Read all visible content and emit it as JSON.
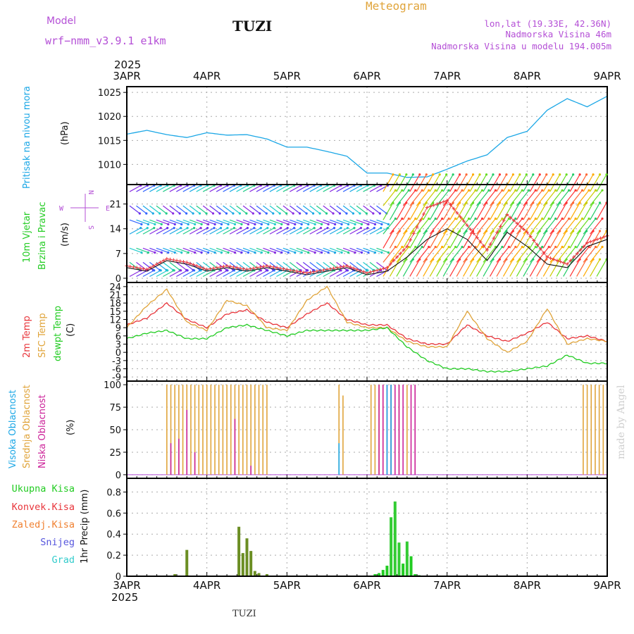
{
  "header": {
    "model_label": "Model",
    "model_name": "wrf−nmm_v3.9.1  e1km",
    "station": "TUZI",
    "title": "Meteogram",
    "coords": "lon,lat (19.33E, 42.36N)",
    "elevation": "Nadmorska Visina 46m",
    "model_elevation": "Nadmorska Visina u modelu 194.005m"
  },
  "footer": {
    "station": "TUZI",
    "watermark": "made by Angel"
  },
  "colors": {
    "pressure": "#1ba7e6",
    "t2m": "#e8353b",
    "sfc": "#e0a43a",
    "dew": "#22cc22",
    "cloud_high": "#1ba7e6",
    "cloud_mid": "#e0a43a",
    "cloud_low": "#cc2299",
    "rain_total": "#22cc22",
    "rain_conv": "#e8353b",
    "rain_frozen": "#f08030",
    "snow": "#5555dd",
    "graupel": "#33cccc",
    "purple_text": "#b44fd6"
  },
  "chart_data": [
    {
      "id": "pressure",
      "type": "line",
      "ylabel": [
        "Pritisak na nivou mora",
        "(hPa)"
      ],
      "yticks": [
        1010,
        1015,
        1020,
        1025
      ],
      "ylim": [
        1005.8,
        1026.2
      ],
      "series": [
        {
          "x_days": [
            0.0,
            0.25,
            0.5,
            0.75,
            1.0,
            1.25,
            1.5,
            1.75,
            2.0,
            2.25,
            2.5,
            2.75,
            3.0,
            3.25,
            3.5,
            3.75,
            4.0,
            4.25,
            4.5,
            4.75,
            5.0,
            5.25,
            5.5,
            5.75,
            6.0
          ],
          "values": [
            1016.3,
            1017.1,
            1016.2,
            1015.6,
            1016.6,
            1016.1,
            1016.2,
            1015.3,
            1013.6,
            1013.6,
            1012.7,
            1011.7,
            1008.2,
            1008.2,
            1007.3,
            1007.4,
            1009.0,
            1010.7,
            1012.0,
            1015.6,
            1016.9,
            1021.3,
            1023.7,
            1022.0,
            1024.2
          ]
        }
      ]
    },
    {
      "id": "wind",
      "type": "line",
      "ylabel": [
        "10m Vjetar",
        "Brzina i Pravac",
        "(m/s)"
      ],
      "compass": {
        "n": "N",
        "s": "S",
        "e": "E",
        "w": "W"
      },
      "yticks": [
        0,
        7,
        14,
        21
      ],
      "ylim": [
        -1.2,
        26.5
      ],
      "series": [
        {
          "name": "speed",
          "x_days": [
            0.0,
            0.25,
            0.5,
            0.75,
            1.0,
            1.25,
            1.5,
            1.75,
            2.0,
            2.25,
            2.5,
            2.75,
            3.0,
            3.25,
            3.5,
            3.75,
            4.0,
            4.25,
            4.5,
            4.75,
            5.0,
            5.25,
            5.5,
            5.75,
            6.0
          ],
          "values": [
            3,
            2,
            5,
            4,
            2,
            3,
            2,
            3,
            2,
            1,
            2,
            3,
            1,
            2,
            6,
            11,
            14,
            11,
            5,
            13,
            9,
            4,
            3,
            9,
            11
          ]
        },
        {
          "name": "gusts",
          "x_days": [
            0.0,
            0.25,
            0.5,
            0.75,
            1.0,
            1.25,
            1.5,
            1.75,
            2.0,
            2.25,
            2.5,
            2.75,
            3.0,
            3.25,
            3.5,
            3.75,
            4.0,
            4.25,
            4.5,
            4.75,
            5.0,
            5.25,
            5.5,
            5.75,
            6.0
          ],
          "values": [
            3.5,
            2.5,
            5.5,
            4.5,
            2.5,
            3.5,
            2.5,
            3.5,
            2.5,
            1.5,
            2.5,
            3.5,
            1.5,
            3,
            9,
            20,
            22,
            15,
            8,
            18,
            13,
            6,
            4,
            10,
            12
          ]
        }
      ]
    },
    {
      "id": "temperature",
      "type": "line",
      "ylabel": [
        "2m Temp",
        "SFC Temp",
        "dewpt Temp",
        "(C)"
      ],
      "yticks": [
        -9,
        -6,
        -3,
        0,
        3,
        6,
        9,
        12,
        15,
        18,
        21,
        24
      ],
      "ylim": [
        -10.5,
        25.5
      ],
      "series": [
        {
          "name": "2m Temp",
          "x_days": [
            0.0,
            0.25,
            0.5,
            0.75,
            1.0,
            1.25,
            1.5,
            1.75,
            2.0,
            2.25,
            2.5,
            2.75,
            3.0,
            3.25,
            3.5,
            3.75,
            4.0,
            4.25,
            4.5,
            4.75,
            5.0,
            5.25,
            5.5,
            5.75,
            6.0
          ],
          "values": [
            10,
            12.5,
            18,
            12,
            9,
            14,
            15.5,
            11,
            9,
            14,
            18,
            12,
            10,
            10,
            5,
            3,
            3,
            10,
            6,
            4,
            7,
            11,
            5,
            6,
            4
          ]
        },
        {
          "name": "SFC Temp",
          "x_days": [
            0.0,
            0.25,
            0.5,
            0.75,
            1.0,
            1.25,
            1.5,
            1.75,
            2.0,
            2.25,
            2.5,
            2.75,
            3.0,
            3.25,
            3.5,
            3.75,
            4.0,
            4.25,
            4.5,
            4.75,
            5.0,
            5.25,
            5.5,
            5.75,
            6.0
          ],
          "values": [
            9,
            17,
            23,
            11,
            8,
            19,
            17,
            9,
            8,
            19,
            24,
            11,
            9,
            9,
            4,
            2,
            2,
            15,
            5,
            0,
            4,
            16,
            3,
            5,
            4
          ]
        },
        {
          "name": "dewpt Temp",
          "x_days": [
            0.0,
            0.25,
            0.5,
            0.75,
            1.0,
            1.25,
            1.5,
            1.75,
            2.0,
            2.25,
            2.5,
            2.75,
            3.0,
            3.25,
            3.5,
            3.75,
            4.0,
            4.25,
            4.5,
            4.75,
            5.0,
            5.25,
            5.5,
            5.75,
            6.0
          ],
          "values": [
            5,
            7,
            8,
            5,
            5,
            9,
            10,
            8,
            6,
            8,
            8,
            8,
            8,
            9,
            2,
            -3,
            -6,
            -6,
            -7,
            -7,
            -6,
            -5,
            -1,
            -4,
            -4
          ]
        }
      ]
    },
    {
      "id": "clouds",
      "type": "bar",
      "ylabel": [
        "Visoka Oblacnost",
        "Srednja Oblacnost",
        "Niska Oblacnost",
        "(%)"
      ],
      "yticks": [
        0,
        25,
        50,
        75,
        100
      ],
      "ylim": [
        -4,
        104
      ],
      "series": [
        {
          "name": "Srednja",
          "x_days": [
            0.5,
            0.55,
            0.6,
            0.65,
            0.7,
            0.75,
            0.8,
            0.85,
            0.9,
            0.95,
            1.0,
            1.05,
            1.1,
            1.15,
            1.2,
            1.25,
            1.3,
            1.35,
            1.4,
            1.45,
            1.5,
            1.55,
            1.6,
            1.65,
            1.7,
            1.75,
            2.65,
            2.7,
            3.05,
            3.1,
            3.15,
            3.2,
            3.3,
            3.4,
            3.5,
            5.7,
            5.75,
            5.8,
            5.85,
            5.9,
            5.95,
            6.0
          ],
          "values": [
            100,
            100,
            100,
            100,
            100,
            100,
            100,
            100,
            100,
            100,
            100,
            100,
            100,
            100,
            100,
            100,
            100,
            100,
            100,
            100,
            100,
            100,
            100,
            100,
            100,
            100,
            100,
            88,
            100,
            100,
            100,
            100,
            100,
            100,
            100,
            100,
            100,
            100,
            100,
            100,
            100,
            100
          ]
        },
        {
          "name": "Niska",
          "x_days": [
            0.55,
            0.65,
            0.75,
            0.85,
            1.35,
            1.55,
            3.15,
            3.2,
            3.25,
            3.3,
            3.35,
            3.4,
            3.45,
            3.55,
            3.6
          ],
          "values": [
            35,
            40,
            72,
            25,
            62,
            10,
            100,
            100,
            100,
            100,
            100,
            100,
            100,
            100,
            100
          ]
        },
        {
          "name": "Visoka",
          "x_days": [
            2.65,
            3.25,
            3.3
          ],
          "values": [
            35,
            100,
            100
          ]
        }
      ]
    },
    {
      "id": "precip",
      "type": "bar",
      "ylabel": [
        "1hr Precip (mm)"
      ],
      "legend": [
        "Ukupna Kisa",
        "Konvek.Kisa",
        "Zaledj.Kisa",
        "Snijeg",
        "Grad"
      ],
      "yticks": [
        0.0,
        0.2,
        0.4,
        0.6,
        0.8
      ],
      "ylim": [
        0,
        0.93
      ],
      "series": [
        {
          "name": "Ukupna Kisa",
          "x_days": [
            0.6,
            0.75,
            1.4,
            1.45,
            1.5,
            1.55,
            1.6,
            1.65,
            1.75,
            3.1,
            3.15,
            3.2,
            3.25,
            3.3,
            3.35,
            3.4,
            3.45,
            3.5,
            3.55,
            3.6,
            3.65
          ],
          "values": [
            0.02,
            0.25,
            0.47,
            0.22,
            0.36,
            0.24,
            0.05,
            0.03,
            0.02,
            0.02,
            0.03,
            0.06,
            0.1,
            0.56,
            0.71,
            0.32,
            0.12,
            0.33,
            0.19,
            0.02,
            0.01
          ]
        }
      ]
    }
  ],
  "time_axis": {
    "year": "2025",
    "labels": [
      "3APR",
      "4APR",
      "5APR",
      "6APR",
      "7APR",
      "8APR",
      "9APR"
    ]
  }
}
